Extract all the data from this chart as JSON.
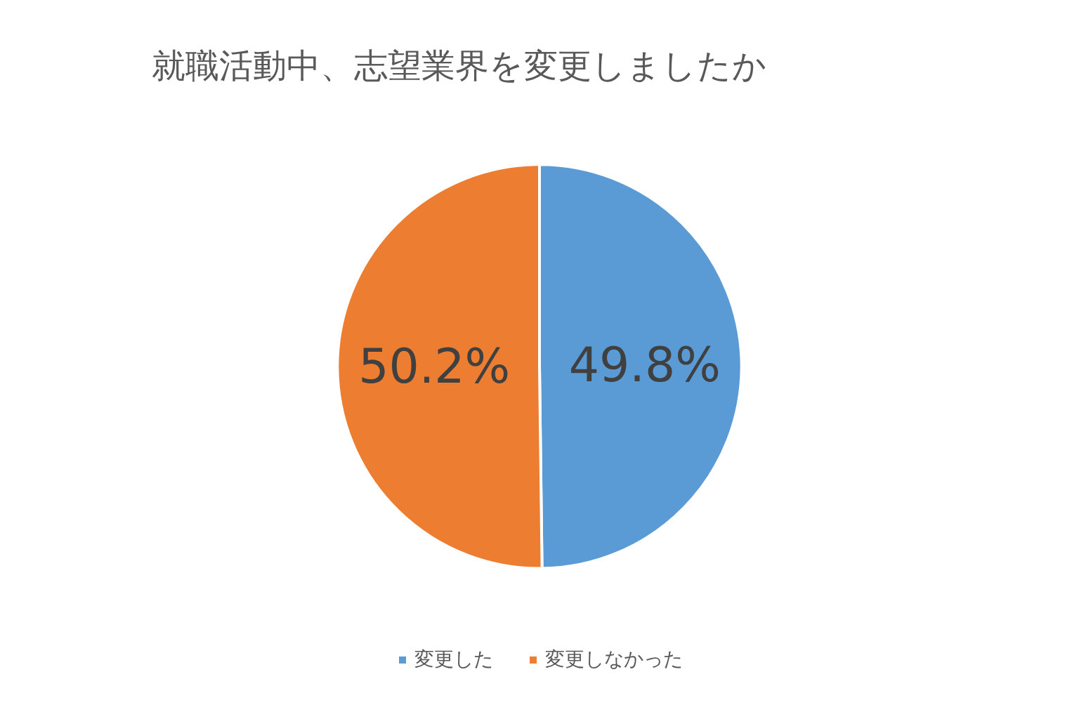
{
  "chart_data": {
    "type": "pie",
    "title": "就職活動中、志望業界を変更しましたか",
    "categories": [
      "変更した",
      "変更しなかった"
    ],
    "values": [
      49.8,
      50.2
    ],
    "colors": [
      "#5b9bd5",
      "#ed7d31"
    ],
    "value_labels": [
      "49.8%",
      "50.2%"
    ],
    "legend": "bottom"
  }
}
